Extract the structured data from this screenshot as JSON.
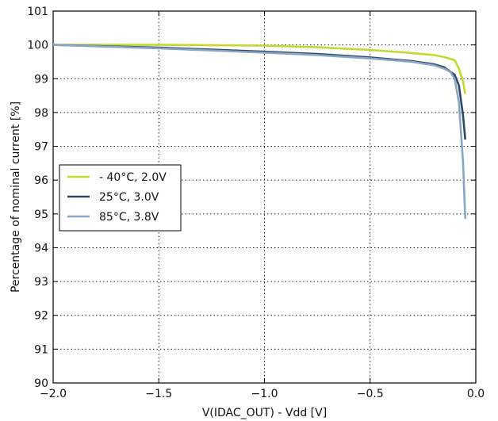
{
  "chart_data": {
    "type": "line",
    "title": "",
    "xlabel": "V(IDAC_OUT) - Vdd [V]",
    "ylabel": "Percentage of nominal current [%]",
    "xlim": [
      -2.0,
      0.0
    ],
    "ylim": [
      90,
      101
    ],
    "x_ticks": [
      "−2.0",
      "−1.5",
      "−1.0",
      "−0.5",
      "0.0"
    ],
    "x_tick_values": [
      -2.0,
      -1.5,
      -1.0,
      -0.5,
      0.0
    ],
    "y_ticks": [
      "90",
      "91",
      "92",
      "93",
      "94",
      "95",
      "96",
      "97",
      "98",
      "99",
      "100",
      "101"
    ],
    "y_tick_values": [
      90,
      91,
      92,
      93,
      94,
      95,
      96,
      97,
      98,
      99,
      100,
      101
    ],
    "grid": true,
    "legend_position": "middle-left",
    "series": [
      {
        "name": "- 40°C, 2.0V",
        "color": "#c5d82e",
        "x": [
          -2.0,
          -1.5,
          -1.0,
          -0.75,
          -0.5,
          -0.3,
          -0.2,
          -0.15,
          -0.1,
          -0.08,
          -0.06,
          -0.05
        ],
        "y": [
          100.0,
          100.0,
          99.98,
          99.93,
          99.85,
          99.76,
          99.7,
          99.64,
          99.55,
          99.3,
          98.9,
          98.55
        ]
      },
      {
        "name": "25°C, 3.0V",
        "color": "#2e4a62",
        "x": [
          -2.0,
          -1.5,
          -1.0,
          -0.75,
          -0.5,
          -0.3,
          -0.2,
          -0.15,
          -0.1,
          -0.08,
          -0.06,
          -0.05
        ],
        "y": [
          100.0,
          99.92,
          99.8,
          99.73,
          99.63,
          99.52,
          99.43,
          99.34,
          99.12,
          98.8,
          97.9,
          97.2
        ]
      },
      {
        "name": "85°C, 3.8V",
        "color": "#8aa6c6",
        "x": [
          -2.0,
          -1.5,
          -1.0,
          -0.75,
          -0.5,
          -0.3,
          -0.2,
          -0.15,
          -0.12,
          -0.1,
          -0.08,
          -0.06,
          -0.05
        ],
        "y": [
          100.0,
          99.9,
          99.77,
          99.7,
          99.6,
          99.5,
          99.4,
          99.3,
          99.2,
          99.0,
          98.3,
          96.5,
          94.85
        ]
      }
    ]
  }
}
